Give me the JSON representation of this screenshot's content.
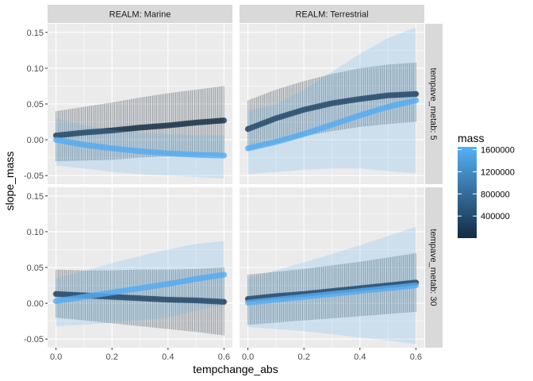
{
  "chart_data": {
    "type": "line",
    "xlabel": "tempchange_abs",
    "ylabel": "slope_mass",
    "xlim": [
      -0.03,
      0.63
    ],
    "ylim": [
      -0.062,
      0.162
    ],
    "x_ticks": [
      0.0,
      0.2,
      0.4,
      0.6
    ],
    "x_tick_labels": [
      "0.0",
      "0.2",
      "0.4",
      "0.6"
    ],
    "y_ticks": [
      -0.05,
      0.0,
      0.05,
      0.1,
      0.15
    ],
    "y_tick_labels": [
      "-0.05",
      "0.00",
      "0.05",
      "0.10",
      "0.15"
    ],
    "col_strips": [
      "REALM: Marine",
      "REALM: Terrestrial"
    ],
    "row_strips": [
      "tempave_metab: 5",
      "tempave_metab: 30"
    ],
    "legend": {
      "title": "mass",
      "position": "right",
      "labels": [
        "1600000",
        "1200000",
        "800000",
        "400000"
      ],
      "values": [
        1600000,
        1200000,
        800000,
        400000
      ],
      "min": 1000,
      "max": 1650000,
      "color_low": "#132B43",
      "color_high": "#56B1F7"
    },
    "x": [
      0.0,
      0.1,
      0.2,
      0.3,
      0.4,
      0.5,
      0.6
    ],
    "panels": [
      {
        "row": 0,
        "col": 0,
        "series": [
          {
            "name": "low mass",
            "mass": 1000,
            "values": [
              0.006,
              0.01,
              0.013,
              0.017,
              0.02,
              0.024,
              0.027
            ],
            "lower": [
              -0.03,
              -0.029,
              -0.028,
              -0.025,
              -0.023,
              -0.022,
              -0.022
            ],
            "upper": [
              0.04,
              0.046,
              0.052,
              0.059,
              0.065,
              0.07,
              0.075
            ]
          },
          {
            "name": "high mass",
            "mass": 1600000,
            "values": [
              0.0,
              -0.007,
              -0.012,
              -0.016,
              -0.019,
              -0.021,
              -0.022
            ],
            "lower": [
              -0.036,
              -0.04,
              -0.045,
              -0.048,
              -0.05,
              -0.052,
              -0.054
            ],
            "upper": [
              0.03,
              0.02,
              0.014,
              0.01,
              0.008,
              0.006,
              0.006
            ]
          }
        ]
      },
      {
        "row": 0,
        "col": 1,
        "series": [
          {
            "name": "low mass",
            "mass": 1000,
            "values": [
              0.015,
              0.03,
              0.042,
              0.051,
              0.057,
              0.062,
              0.064
            ],
            "lower": [
              -0.015,
              -0.005,
              0.005,
              0.012,
              0.018,
              0.022,
              0.025
            ],
            "upper": [
              0.055,
              0.07,
              0.082,
              0.092,
              0.1,
              0.105,
              0.108
            ]
          },
          {
            "name": "high mass",
            "mass": 1600000,
            "values": [
              -0.012,
              -0.003,
              0.008,
              0.021,
              0.034,
              0.046,
              0.055
            ],
            "lower": [
              -0.048,
              -0.045,
              -0.042,
              -0.04,
              -0.04,
              -0.044,
              -0.047
            ],
            "upper": [
              0.04,
              0.05,
              0.07,
              0.095,
              0.12,
              0.142,
              0.157
            ]
          }
        ]
      },
      {
        "row": 1,
        "col": 0,
        "series": [
          {
            "name": "low mass",
            "mass": 1000,
            "values": [
              0.013,
              0.011,
              0.009,
              0.007,
              0.005,
              0.004,
              0.002
            ],
            "lower": [
              -0.02,
              -0.024,
              -0.028,
              -0.032,
              -0.036,
              -0.04,
              -0.045
            ],
            "upper": [
              0.047,
              0.046,
              0.046,
              0.047,
              0.047,
              0.048,
              0.05
            ]
          },
          {
            "name": "high mass",
            "mass": 1600000,
            "values": [
              0.003,
              0.009,
              0.015,
              0.021,
              0.027,
              0.034,
              0.04
            ],
            "lower": [
              -0.032,
              -0.03,
              -0.027,
              -0.024,
              -0.02,
              -0.01,
              -0.003
            ],
            "upper": [
              0.035,
              0.045,
              0.056,
              0.066,
              0.075,
              0.083,
              0.087
            ]
          }
        ]
      },
      {
        "row": 1,
        "col": 1,
        "series": [
          {
            "name": "low mass",
            "mass": 1000,
            "values": [
              0.006,
              0.01,
              0.013,
              0.017,
              0.021,
              0.025,
              0.029
            ],
            "lower": [
              -0.03,
              -0.027,
              -0.024,
              -0.021,
              -0.018,
              -0.015,
              -0.012
            ],
            "upper": [
              0.04,
              0.044,
              0.048,
              0.053,
              0.058,
              0.064,
              0.07
            ]
          },
          {
            "name": "high mass",
            "mass": 1600000,
            "values": [
              0.001,
              0.005,
              0.009,
              0.013,
              0.017,
              0.021,
              0.025
            ],
            "lower": [
              -0.033,
              -0.036,
              -0.039,
              -0.043,
              -0.048,
              -0.052,
              -0.057
            ],
            "upper": [
              0.035,
              0.046,
              0.057,
              0.069,
              0.081,
              0.094,
              0.107
            ]
          }
        ]
      }
    ]
  }
}
